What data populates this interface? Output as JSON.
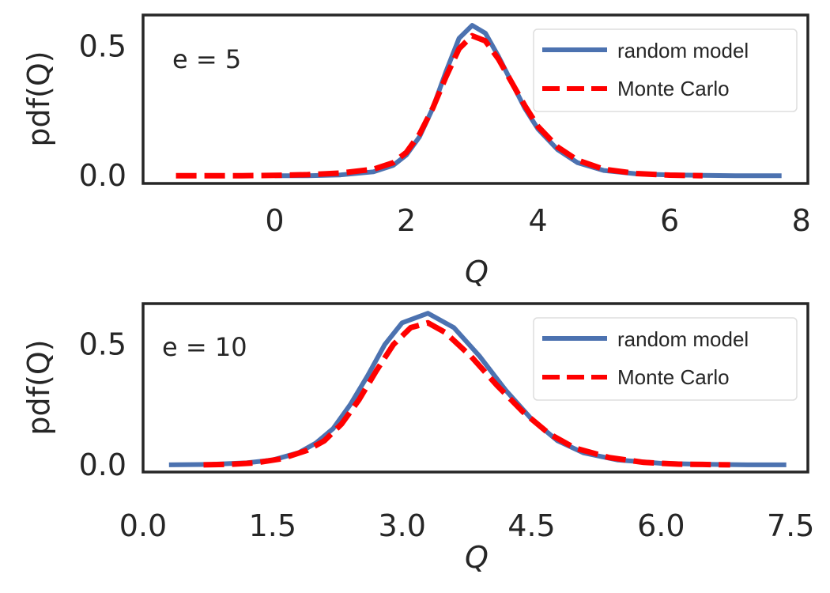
{
  "chart_data": [
    {
      "type": "line",
      "annotation": "e = 5",
      "xlabel": "Q",
      "ylabel": "pdf(Q)",
      "xlim": [
        -2.0,
        8.1
      ],
      "ylim": [
        -0.03,
        0.62
      ],
      "xticks": [
        0,
        2,
        4,
        6,
        8
      ],
      "xtick_labels": [
        "0",
        "2",
        "4",
        "6",
        "8"
      ],
      "yticks": [
        0.0,
        0.5
      ],
      "ytick_labels": [
        "0.0",
        "0.5"
      ],
      "grid": false,
      "legend_position": "top-right",
      "series": [
        {
          "name": "random model",
          "color": "#4c72b0",
          "style": "solid",
          "x": [
            0.0,
            0.5,
            1.0,
            1.5,
            1.8,
            2.0,
            2.2,
            2.4,
            2.6,
            2.8,
            3.0,
            3.2,
            3.4,
            3.6,
            3.8,
            4.0,
            4.3,
            4.6,
            5.0,
            5.5,
            6.0,
            7.0,
            7.7
          ],
          "y": [
            0.0,
            0.0,
            0.003,
            0.015,
            0.04,
            0.08,
            0.15,
            0.26,
            0.4,
            0.53,
            0.58,
            0.55,
            0.46,
            0.36,
            0.26,
            0.18,
            0.1,
            0.05,
            0.02,
            0.007,
            0.003,
            0.0,
            0.0
          ]
        },
        {
          "name": "Monte Carlo",
          "color": "#ff0000",
          "style": "dashed",
          "x": [
            -1.5,
            -1.0,
            -0.5,
            0.0,
            0.5,
            1.0,
            1.5,
            1.8,
            2.0,
            2.2,
            2.4,
            2.6,
            2.8,
            3.0,
            3.2,
            3.4,
            3.6,
            3.8,
            4.0,
            4.3,
            4.6,
            5.0,
            5.5,
            6.0,
            6.5
          ],
          "y": [
            0.0,
            0.0,
            0.0,
            0.001,
            0.004,
            0.01,
            0.025,
            0.05,
            0.09,
            0.16,
            0.26,
            0.38,
            0.49,
            0.54,
            0.52,
            0.45,
            0.36,
            0.27,
            0.19,
            0.11,
            0.06,
            0.025,
            0.008,
            0.002,
            0.0
          ]
        }
      ]
    },
    {
      "type": "line",
      "annotation": "e = 10",
      "xlabel": "Q",
      "ylabel": "pdf(Q)",
      "xlim": [
        0.0,
        7.7
      ],
      "ylim": [
        -0.03,
        0.67
      ],
      "xticks": [
        0.0,
        1.5,
        3.0,
        4.5,
        6.0,
        7.5
      ],
      "xtick_labels": [
        "0.0",
        "1.5",
        "3.0",
        "4.5",
        "6.0",
        "7.5"
      ],
      "yticks": [
        0.0,
        0.5
      ],
      "ytick_labels": [
        "0.0",
        "0.5"
      ],
      "grid": false,
      "legend_position": "top-right",
      "series": [
        {
          "name": "random model",
          "color": "#4c72b0",
          "style": "solid",
          "x": [
            0.3,
            0.8,
            1.2,
            1.5,
            1.8,
            2.0,
            2.2,
            2.4,
            2.6,
            2.8,
            3.0,
            3.3,
            3.6,
            3.9,
            4.2,
            4.5,
            4.8,
            5.1,
            5.5,
            6.0,
            6.5,
            7.0,
            7.45
          ],
          "y": [
            0.0,
            0.002,
            0.008,
            0.02,
            0.05,
            0.09,
            0.15,
            0.25,
            0.37,
            0.5,
            0.59,
            0.63,
            0.57,
            0.45,
            0.31,
            0.19,
            0.1,
            0.05,
            0.02,
            0.006,
            0.002,
            0.0,
            0.0
          ]
        },
        {
          "name": "Monte Carlo",
          "color": "#ff0000",
          "style": "dashed",
          "x": [
            0.7,
            1.0,
            1.3,
            1.6,
            1.9,
            2.1,
            2.3,
            2.5,
            2.7,
            2.9,
            3.1,
            3.3,
            3.5,
            3.8,
            4.1,
            4.4,
            4.7,
            5.0,
            5.4,
            5.8,
            6.2,
            6.8
          ],
          "y": [
            0.0,
            0.002,
            0.008,
            0.025,
            0.06,
            0.1,
            0.17,
            0.27,
            0.39,
            0.5,
            0.57,
            0.59,
            0.55,
            0.45,
            0.33,
            0.22,
            0.13,
            0.07,
            0.03,
            0.01,
            0.003,
            0.0
          ]
        }
      ]
    }
  ]
}
